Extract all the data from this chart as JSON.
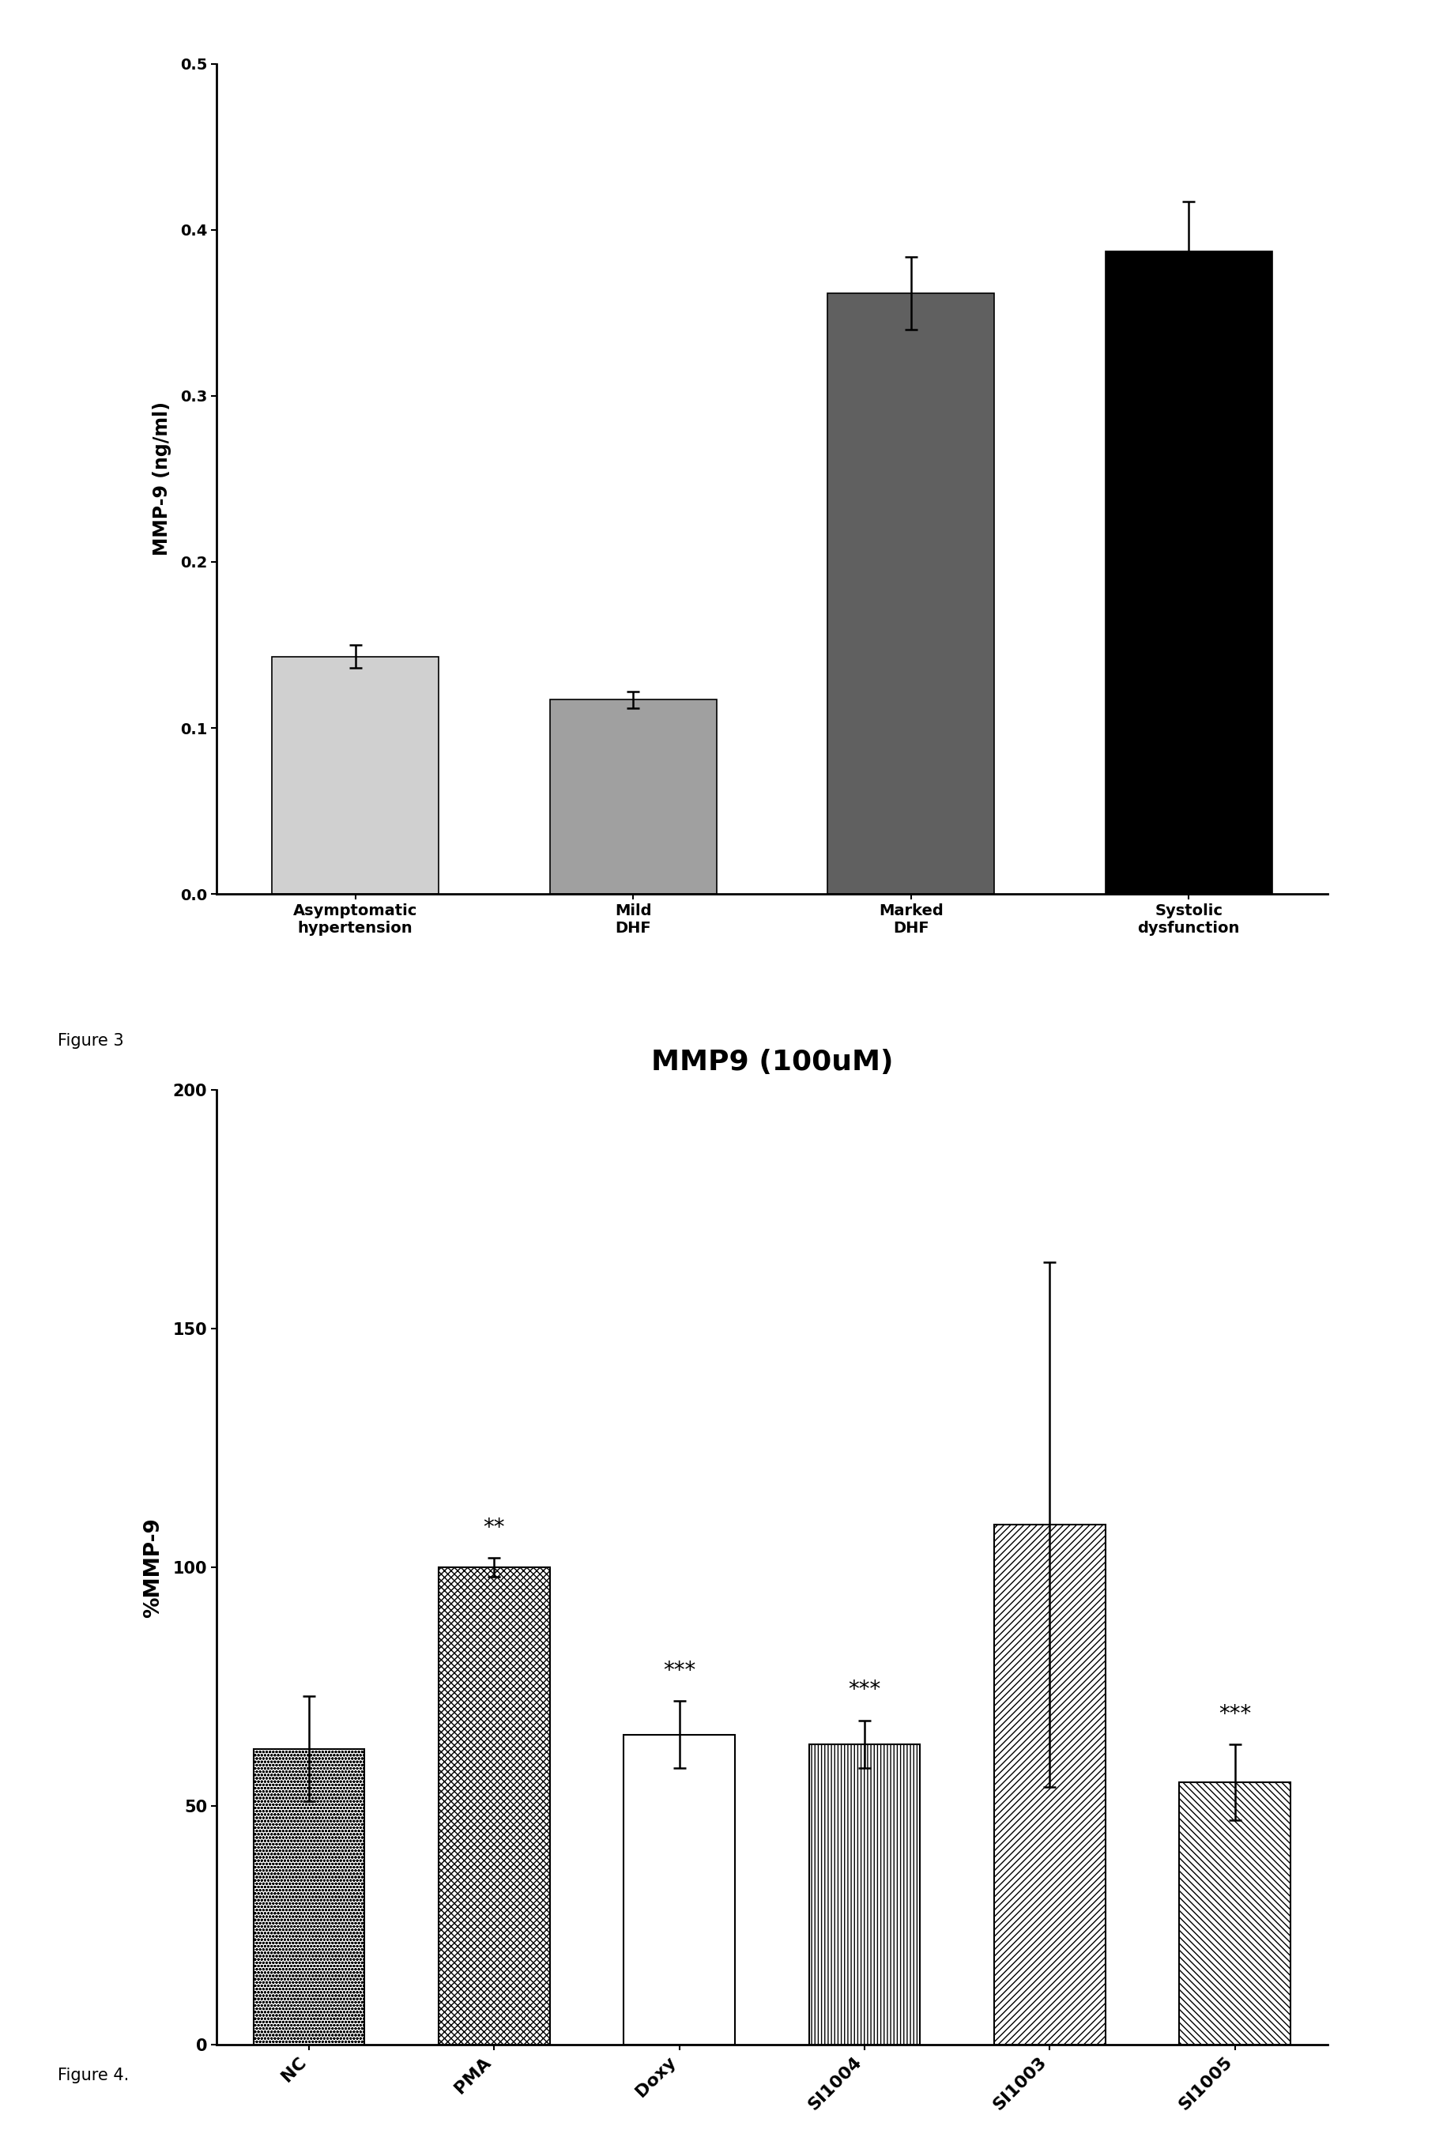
{
  "fig3": {
    "categories": [
      "Asymptomatic\nhypertension",
      "Mild\nDHF",
      "Marked\nDHF",
      "Systolic\ndysfunction"
    ],
    "values": [
      0.143,
      0.117,
      0.362,
      0.387
    ],
    "errors": [
      0.007,
      0.005,
      0.022,
      0.03
    ],
    "ylabel": "MMP-9 (ng/ml)",
    "ylim": [
      0.0,
      0.5
    ],
    "yticks": [
      0.0,
      0.1,
      0.2,
      0.3,
      0.4,
      0.5
    ],
    "ytick_labels": [
      "0.0",
      "0.1",
      "0.2",
      "0.3",
      "0.4",
      "0.5"
    ],
    "bar_colors": [
      "#d0d0d0",
      "#a0a0a0",
      "#606060",
      "#000000"
    ],
    "bar_edge_colors": [
      "#000000",
      "#000000",
      "#000000",
      "#000000"
    ],
    "figure_label": "Figure 3"
  },
  "fig4": {
    "title": "MMP9 (100uM)",
    "categories": [
      "NC",
      "PMA",
      "Doxy",
      "SI1004",
      "SI1003",
      "SI1005"
    ],
    "values": [
      62,
      100,
      65,
      63,
      109,
      55
    ],
    "errors": [
      11,
      2,
      7,
      5,
      55,
      8
    ],
    "significance": [
      "",
      "**",
      "***",
      "***",
      "",
      "***"
    ],
    "ylabel": "%MMP-9",
    "ylim": [
      0,
      200
    ],
    "yticks": [
      0,
      50,
      100,
      150,
      200
    ],
    "ytick_labels": [
      "0",
      "50",
      "100",
      "150",
      "200"
    ],
    "figure_label": "Figure 4."
  },
  "background_color": "#ffffff"
}
